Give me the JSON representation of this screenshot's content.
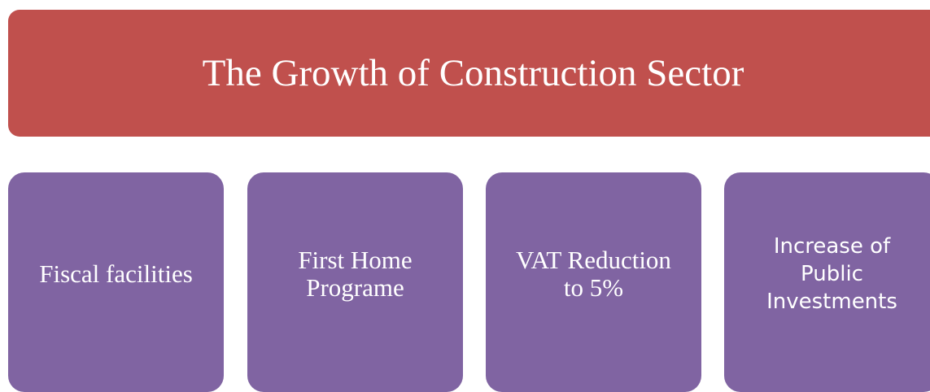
{
  "title": "The Growth of Construction Sector",
  "items": [
    {
      "lines": [
        "Fiscal facilities"
      ]
    },
    {
      "lines": [
        "First Home",
        "Programe"
      ]
    },
    {
      "lines": [
        "VAT Reduction",
        "to 5%"
      ]
    },
    {
      "lines": [
        "Increase of",
        "Public",
        "Investments"
      ]
    }
  ]
}
